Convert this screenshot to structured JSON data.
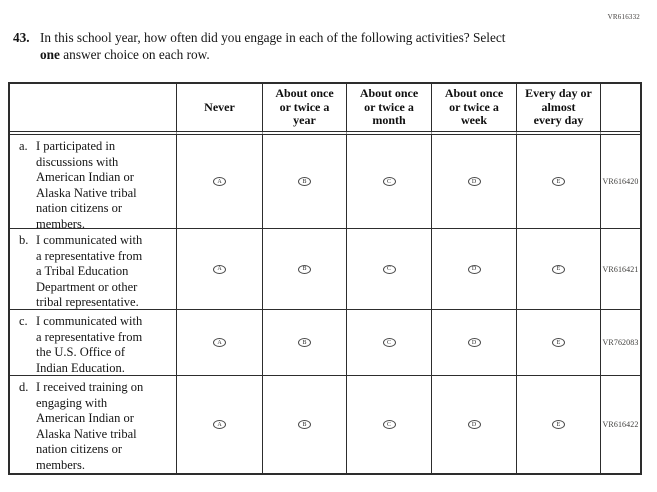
{
  "page": {
    "corner_code": "VR616332"
  },
  "question": {
    "number": "43.",
    "line1": "In this school year, how often did you engage in each of the following activities? Select",
    "bold_word": "one",
    "line2_rest": " answer choice on each row."
  },
  "table": {
    "bubble_letters": [
      "A",
      "B",
      "C",
      "D",
      "E"
    ],
    "headers": [
      {
        "lines": [
          "Never"
        ]
      },
      {
        "lines": [
          "About once",
          "or twice a",
          "year"
        ]
      },
      {
        "lines": [
          "About once",
          "or twice a",
          "month"
        ]
      },
      {
        "lines": [
          "About once",
          "or twice a",
          "week"
        ]
      },
      {
        "lines": [
          "Every day or",
          "almost",
          "every day"
        ]
      }
    ],
    "rows": [
      {
        "label": "a.",
        "text": "I participated in discussions with American Indian or Alaska Native tribal nation citizens or members.",
        "lines": [
          "I participated in",
          "discussions with",
          "American Indian or",
          "Alaska Native tribal",
          "nation citizens or",
          "members."
        ],
        "code": "VR616420"
      },
      {
        "label": "b.",
        "text": "I communicated with a representative from a Tribal Education Department or other tribal representative.",
        "lines": [
          "I communicated with",
          "a representative from",
          "a Tribal Education",
          "Department or other",
          "tribal representative."
        ],
        "code": "VR616421"
      },
      {
        "label": "c.",
        "text": "I communicated with a representative from the U.S. Office of Indian Education.",
        "lines": [
          "I communicated with",
          "a representative from",
          "the U.S. Office of",
          "Indian Education."
        ],
        "code": "VR762083"
      },
      {
        "label": "d.",
        "text": "I received training on engaging with American Indian or Alaska Native tribal nation citizens or members.",
        "lines": [
          "I received training on",
          "engaging with",
          "American Indian or",
          "Alaska Native tribal",
          "nation citizens or",
          "members."
        ],
        "code": "VR616422"
      }
    ]
  }
}
